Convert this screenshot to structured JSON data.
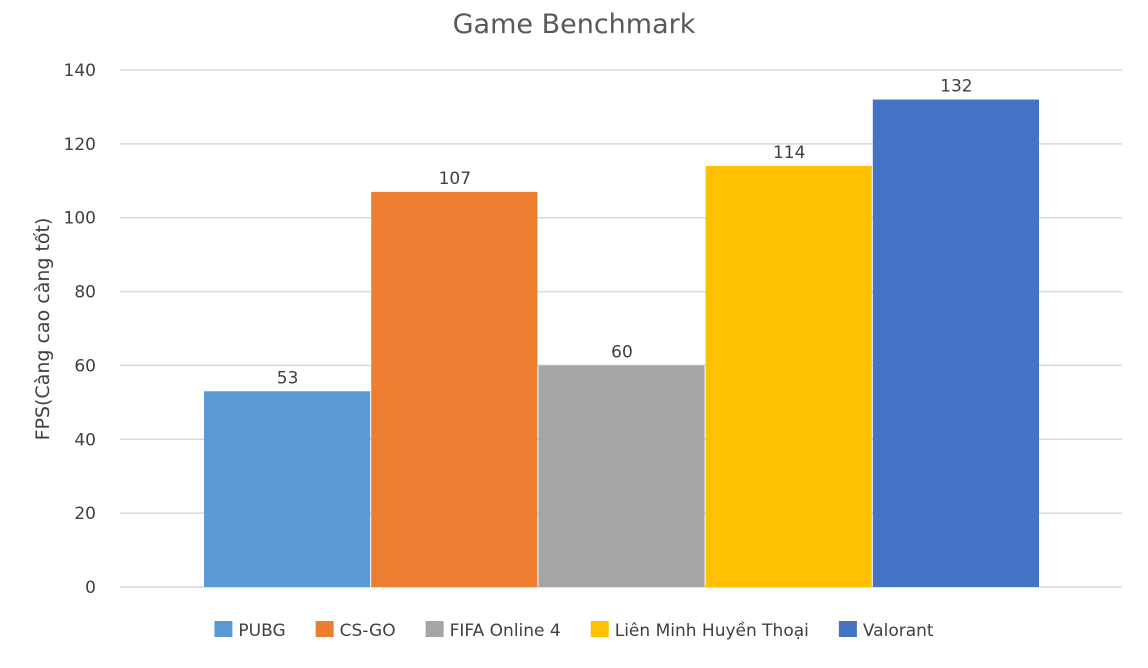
{
  "chart_data": {
    "type": "bar",
    "title": "Game Benchmark",
    "xlabel": "",
    "ylabel": "FPS(Càng cao càng tốt)",
    "ylim": [
      0,
      140
    ],
    "yticks": [
      0,
      20,
      40,
      60,
      80,
      100,
      120,
      140
    ],
    "grid": true,
    "legend_position": "bottom",
    "series": [
      {
        "name": "PUBG",
        "value": 53,
        "color": "#5B9BD5"
      },
      {
        "name": "CS-GO",
        "value": 107,
        "color": "#ED7D31"
      },
      {
        "name": "FIFA Online 4",
        "value": 60,
        "color": "#A5A5A5"
      },
      {
        "name": "Liên Minh Huyền Thoại",
        "value": 114,
        "color": "#FFC000"
      },
      {
        "name": "Valorant",
        "value": 132,
        "color": "#4472C4"
      }
    ]
  }
}
